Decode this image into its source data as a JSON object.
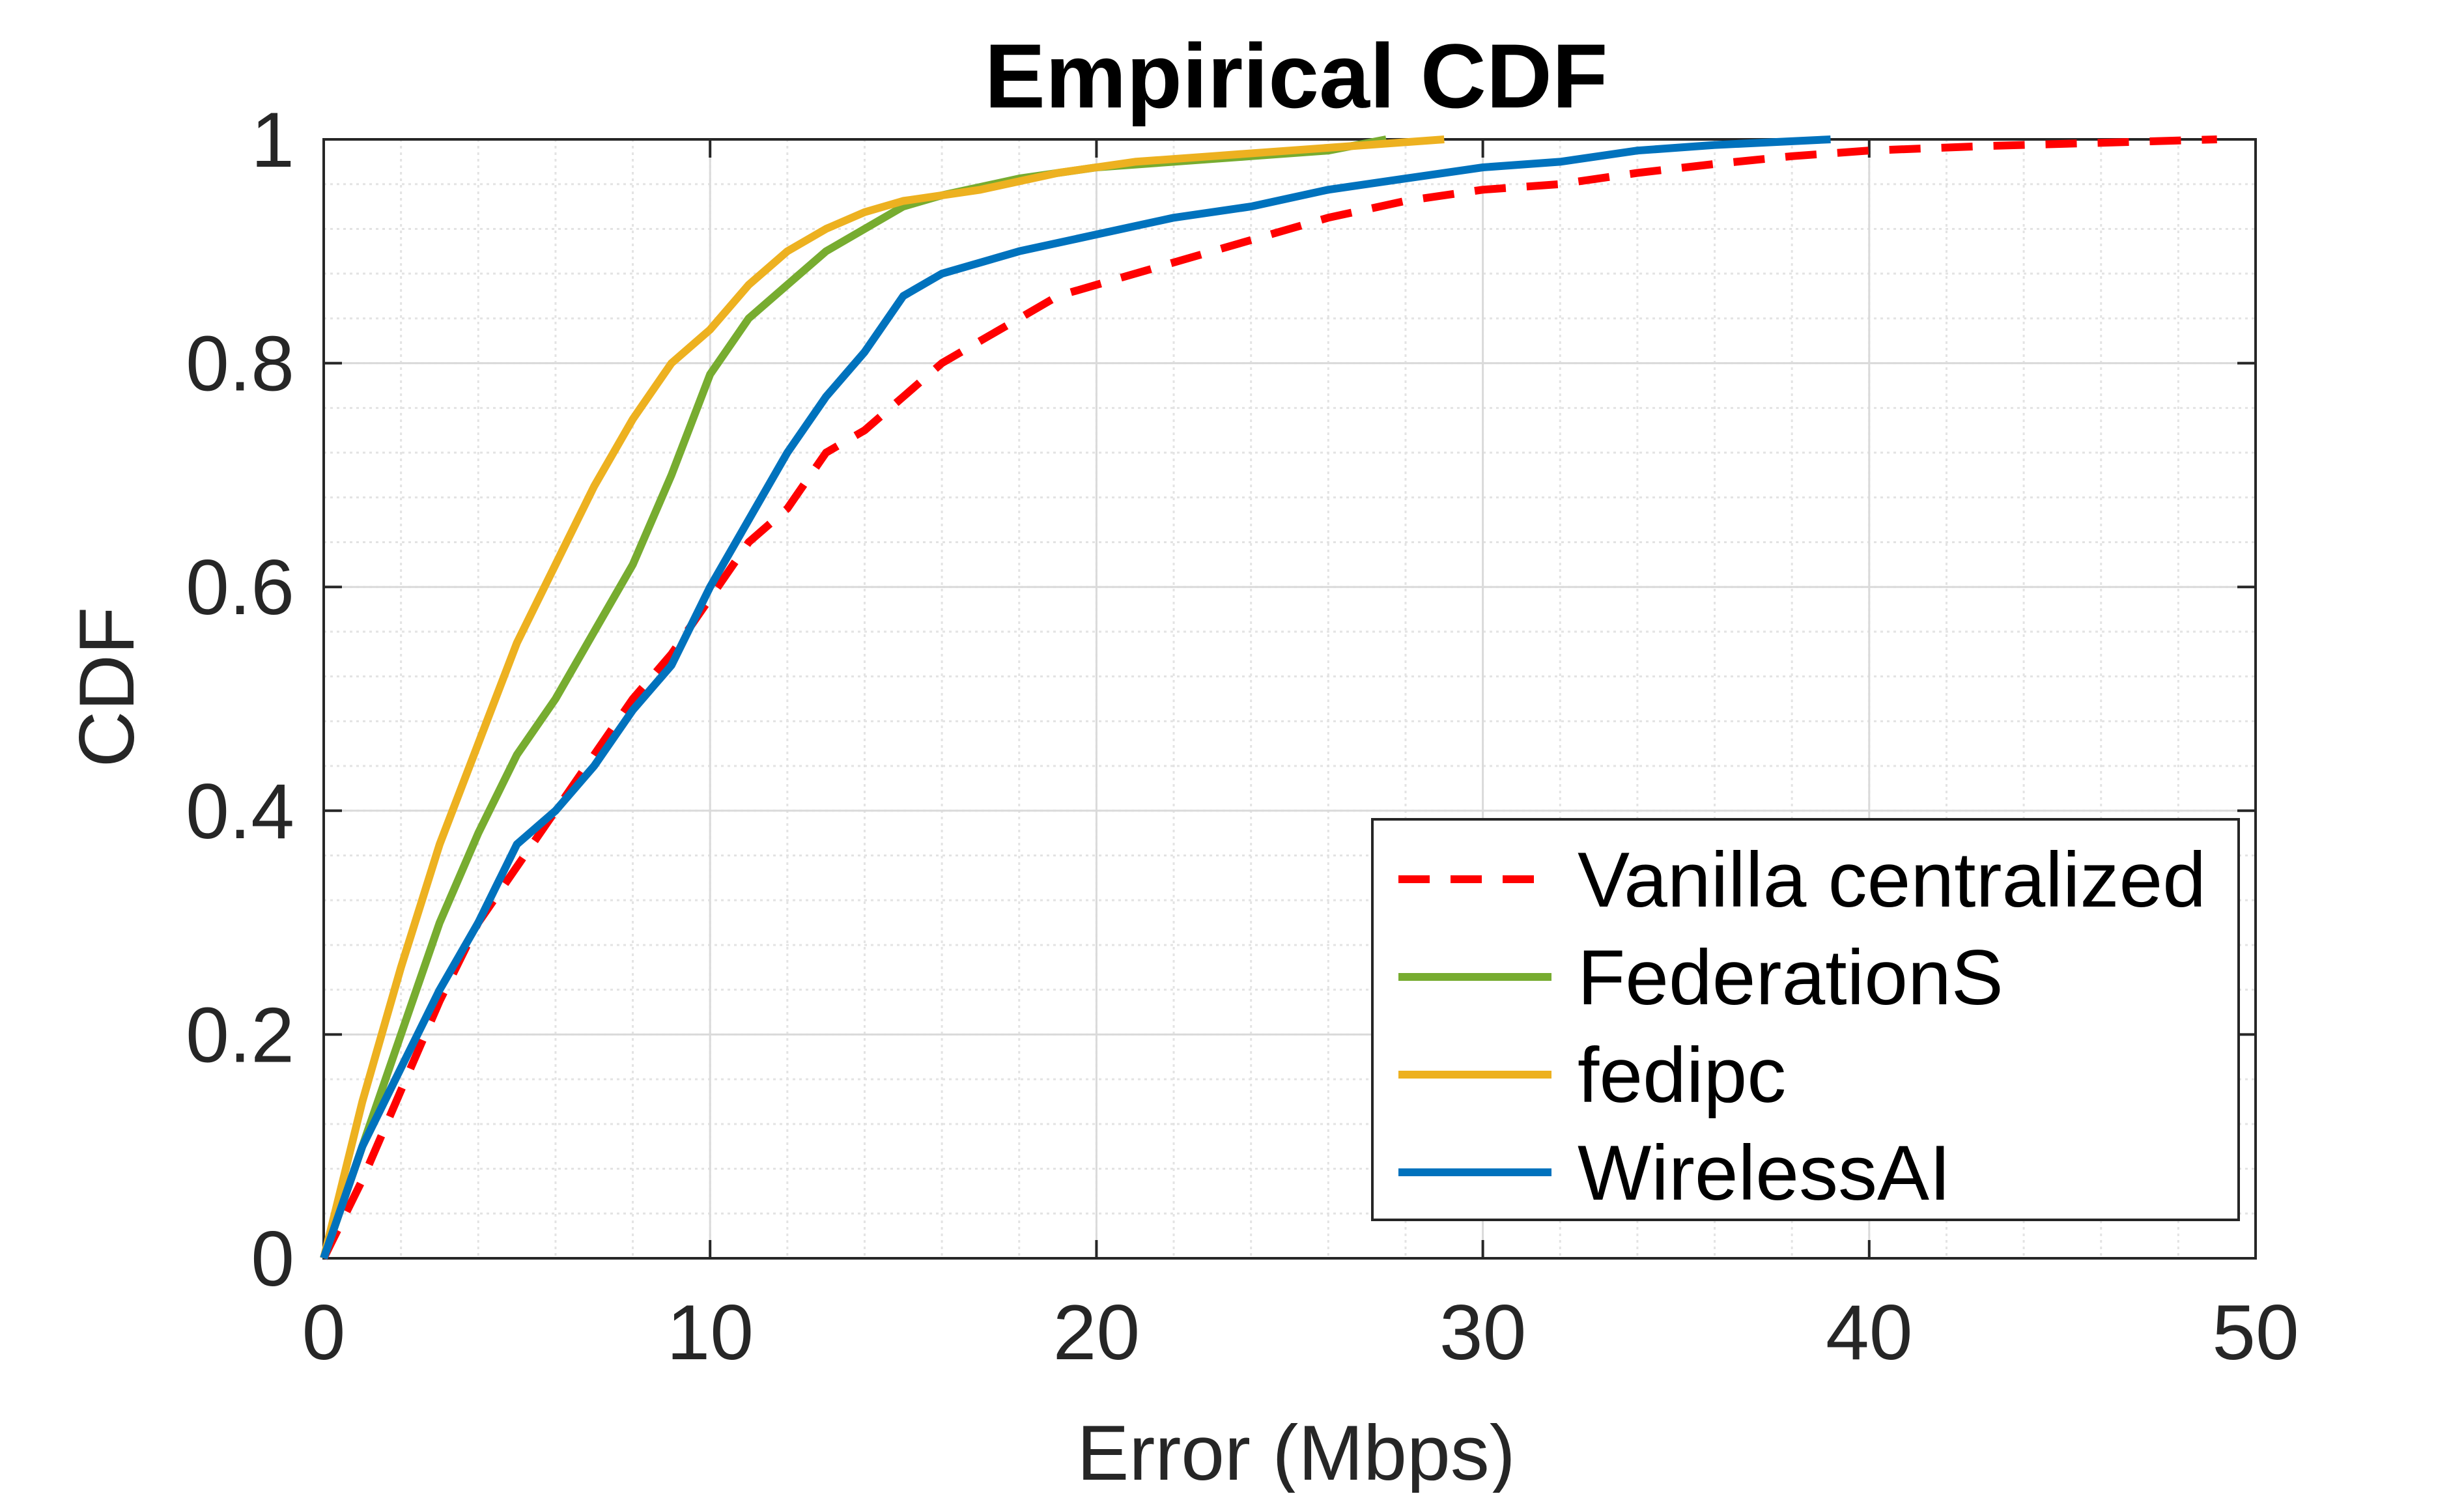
{
  "chart_data": {
    "type": "line",
    "title": "Empirical CDF",
    "xlabel": "Error (Mbps)",
    "ylabel": "CDF",
    "xlim": [
      0,
      50
    ],
    "ylim": [
      0,
      1
    ],
    "x_ticks": [
      0,
      10,
      20,
      30,
      40,
      50
    ],
    "y_ticks": [
      0,
      0.2,
      0.4,
      0.6,
      0.8,
      1
    ],
    "x_tick_labels": [
      "0",
      "10",
      "20",
      "30",
      "40",
      "50"
    ],
    "y_tick_labels": [
      "0",
      "0.2",
      "0.4",
      "0.6",
      "0.8",
      "1"
    ],
    "grid": true,
    "minor_grid": true,
    "legend_position": "bottom-right",
    "series": [
      {
        "name": "Vanilla centralized",
        "color": "#ff0000",
        "style": "dashed",
        "points": [
          [
            0,
            0
          ],
          [
            1,
            0.07
          ],
          [
            2,
            0.15
          ],
          [
            3,
            0.23
          ],
          [
            4,
            0.3
          ],
          [
            5,
            0.35
          ],
          [
            6,
            0.4
          ],
          [
            7,
            0.45
          ],
          [
            8,
            0.5
          ],
          [
            9,
            0.54
          ],
          [
            10,
            0.59
          ],
          [
            11,
            0.64
          ],
          [
            12,
            0.67
          ],
          [
            13,
            0.72
          ],
          [
            14,
            0.74
          ],
          [
            15,
            0.77
          ],
          [
            16,
            0.8
          ],
          [
            17,
            0.82
          ],
          [
            18,
            0.84
          ],
          [
            19,
            0.86
          ],
          [
            20,
            0.87
          ],
          [
            22,
            0.89
          ],
          [
            24,
            0.91
          ],
          [
            26,
            0.93
          ],
          [
            28,
            0.945
          ],
          [
            30,
            0.955
          ],
          [
            32,
            0.96
          ],
          [
            34,
            0.97
          ],
          [
            36,
            0.978
          ],
          [
            38,
            0.985
          ],
          [
            40,
            0.99
          ],
          [
            43,
            0.994
          ],
          [
            46,
            0.997
          ],
          [
            49,
            1
          ]
        ]
      },
      {
        "name": "FederationS",
        "color": "#77ac30",
        "style": "solid",
        "points": [
          [
            0,
            0
          ],
          [
            1,
            0.1
          ],
          [
            2,
            0.2
          ],
          [
            3,
            0.3
          ],
          [
            4,
            0.38
          ],
          [
            5,
            0.45
          ],
          [
            6,
            0.5
          ],
          [
            7,
            0.56
          ],
          [
            8,
            0.62
          ],
          [
            9,
            0.7
          ],
          [
            10,
            0.79
          ],
          [
            11,
            0.84
          ],
          [
            12,
            0.87
          ],
          [
            13,
            0.9
          ],
          [
            14,
            0.92
          ],
          [
            15,
            0.94
          ],
          [
            16,
            0.95
          ],
          [
            18,
            0.965
          ],
          [
            20,
            0.975
          ],
          [
            22,
            0.98
          ],
          [
            24,
            0.985
          ],
          [
            26,
            0.99
          ],
          [
            27.5,
            1
          ]
        ]
      },
      {
        "name": "fedipc",
        "color": "#edb120",
        "style": "solid",
        "points": [
          [
            0,
            0
          ],
          [
            1,
            0.14
          ],
          [
            2,
            0.26
          ],
          [
            3,
            0.37
          ],
          [
            4,
            0.46
          ],
          [
            5,
            0.55
          ],
          [
            6,
            0.62
          ],
          [
            7,
            0.69
          ],
          [
            8,
            0.75
          ],
          [
            9,
            0.8
          ],
          [
            10,
            0.83
          ],
          [
            11,
            0.87
          ],
          [
            12,
            0.9
          ],
          [
            13,
            0.92
          ],
          [
            14,
            0.935
          ],
          [
            15,
            0.945
          ],
          [
            17,
            0.955
          ],
          [
            19,
            0.97
          ],
          [
            21,
            0.98
          ],
          [
            23,
            0.985
          ],
          [
            25,
            0.99
          ],
          [
            27,
            0.995
          ],
          [
            29,
            1
          ]
        ]
      },
      {
        "name": "WirelessAI",
        "color": "#0072bd",
        "style": "solid",
        "points": [
          [
            0,
            0
          ],
          [
            1,
            0.1
          ],
          [
            2,
            0.17
          ],
          [
            3,
            0.24
          ],
          [
            4,
            0.3
          ],
          [
            5,
            0.37
          ],
          [
            6,
            0.4
          ],
          [
            7,
            0.44
          ],
          [
            8,
            0.49
          ],
          [
            9,
            0.53
          ],
          [
            10,
            0.6
          ],
          [
            11,
            0.66
          ],
          [
            12,
            0.72
          ],
          [
            13,
            0.77
          ],
          [
            14,
            0.81
          ],
          [
            15,
            0.86
          ],
          [
            16,
            0.88
          ],
          [
            18,
            0.9
          ],
          [
            20,
            0.915
          ],
          [
            22,
            0.93
          ],
          [
            24,
            0.94
          ],
          [
            26,
            0.955
          ],
          [
            28,
            0.965
          ],
          [
            30,
            0.975
          ],
          [
            32,
            0.98
          ],
          [
            34,
            0.99
          ],
          [
            36,
            0.995
          ],
          [
            39,
            1
          ]
        ]
      }
    ]
  }
}
